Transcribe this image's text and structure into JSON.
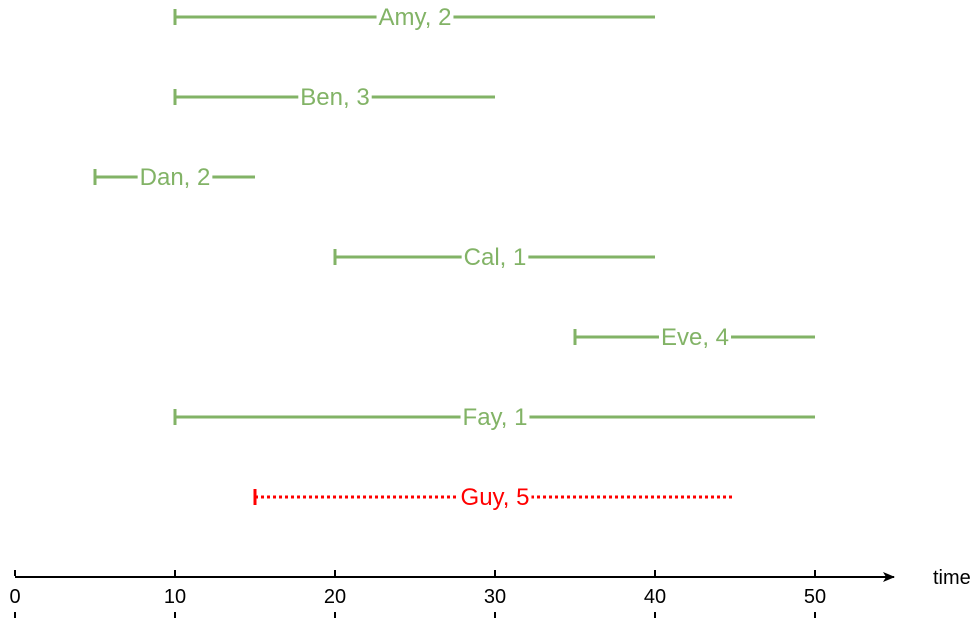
{
  "axis": {
    "title": "time",
    "ticks": [
      "0",
      "10",
      "20",
      "30",
      "40",
      "50"
    ],
    "tick_values": [
      0,
      10,
      20,
      30,
      40,
      50
    ]
  },
  "colors": {
    "interval": "#82b366",
    "highlight": "#ff0000",
    "axis": "#000000"
  },
  "chart_data": {
    "type": "interval-timeline",
    "xlabel": "time",
    "xlim": [
      0,
      55
    ],
    "intervals": [
      {
        "label": "Amy, 2",
        "start": 10,
        "end": 40,
        "style": "solid",
        "color": "#82b366"
      },
      {
        "label": "Ben, 3",
        "start": 10,
        "end": 30,
        "style": "solid",
        "color": "#82b366"
      },
      {
        "label": "Dan, 2",
        "start": 5,
        "end": 15,
        "style": "solid",
        "color": "#82b366"
      },
      {
        "label": "Cal, 1",
        "start": 20,
        "end": 40,
        "style": "solid",
        "color": "#82b366"
      },
      {
        "label": "Eve, 4",
        "start": 35,
        "end": 50,
        "style": "solid",
        "color": "#82b366"
      },
      {
        "label": "Fay, 1",
        "start": 10,
        "end": 50,
        "style": "solid",
        "color": "#82b366"
      },
      {
        "label": "Guy, 5",
        "start": 15,
        "end": 45,
        "style": "dotted",
        "color": "#ff0000"
      }
    ]
  }
}
